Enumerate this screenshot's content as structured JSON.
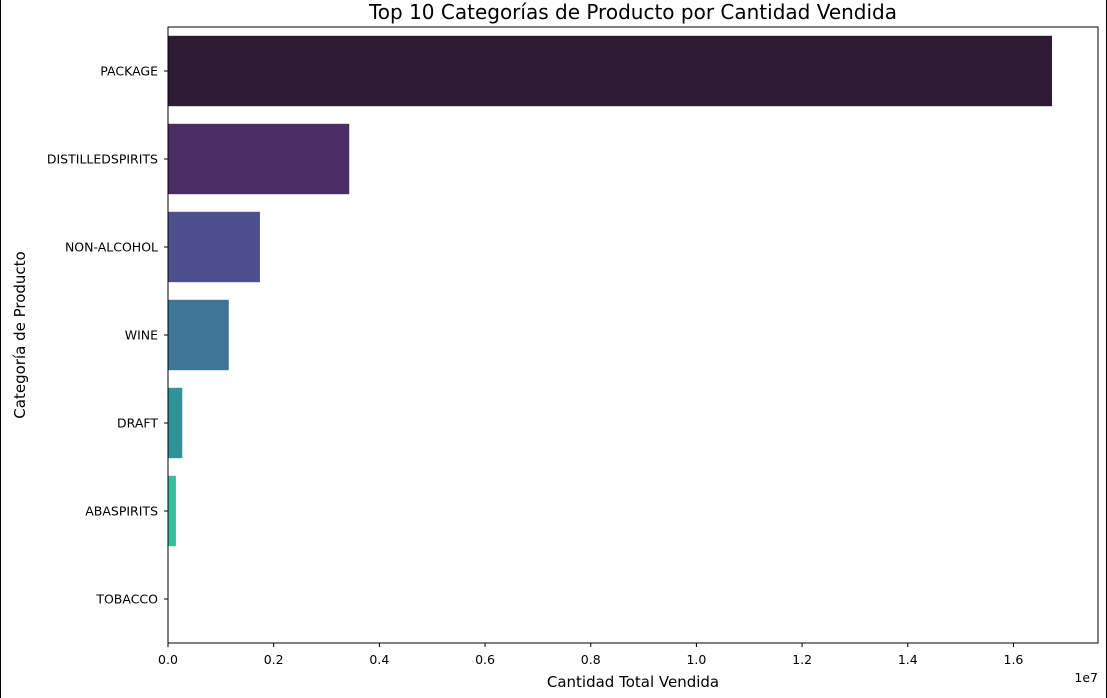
{
  "chart_data": {
    "type": "bar",
    "orientation": "horizontal",
    "title": "Top 10 Categorías de Producto por Cantidad Vendida",
    "xlabel": "Cantidad Total Vendida",
    "ylabel": "Categoría de Producto",
    "x_scale_label": "1e7",
    "categories": [
      "PACKAGE",
      "DISTILLEDSPIRITS",
      "NON-ALCOHOL",
      "WINE",
      "DRAFT",
      "ABASPIRITS",
      "TOBACCO"
    ],
    "values": [
      16730000,
      3430000,
      1740000,
      1150000,
      270000,
      150000,
      500
    ],
    "colors": [
      "#2d1b33",
      "#4a2e63",
      "#4e4f8d",
      "#3f7698",
      "#2f9399",
      "#36bf9f",
      "#5fd690"
    ],
    "xlim": [
      0,
      17600000
    ],
    "x_ticks": [
      0,
      2000000,
      4000000,
      6000000,
      8000000,
      10000000,
      12000000,
      14000000,
      16000000
    ],
    "x_tick_labels": [
      "0.0",
      "0.2",
      "0.4",
      "0.6",
      "0.8",
      "1.0",
      "1.2",
      "1.4",
      "1.6"
    ],
    "grid": false,
    "legend": "none"
  }
}
